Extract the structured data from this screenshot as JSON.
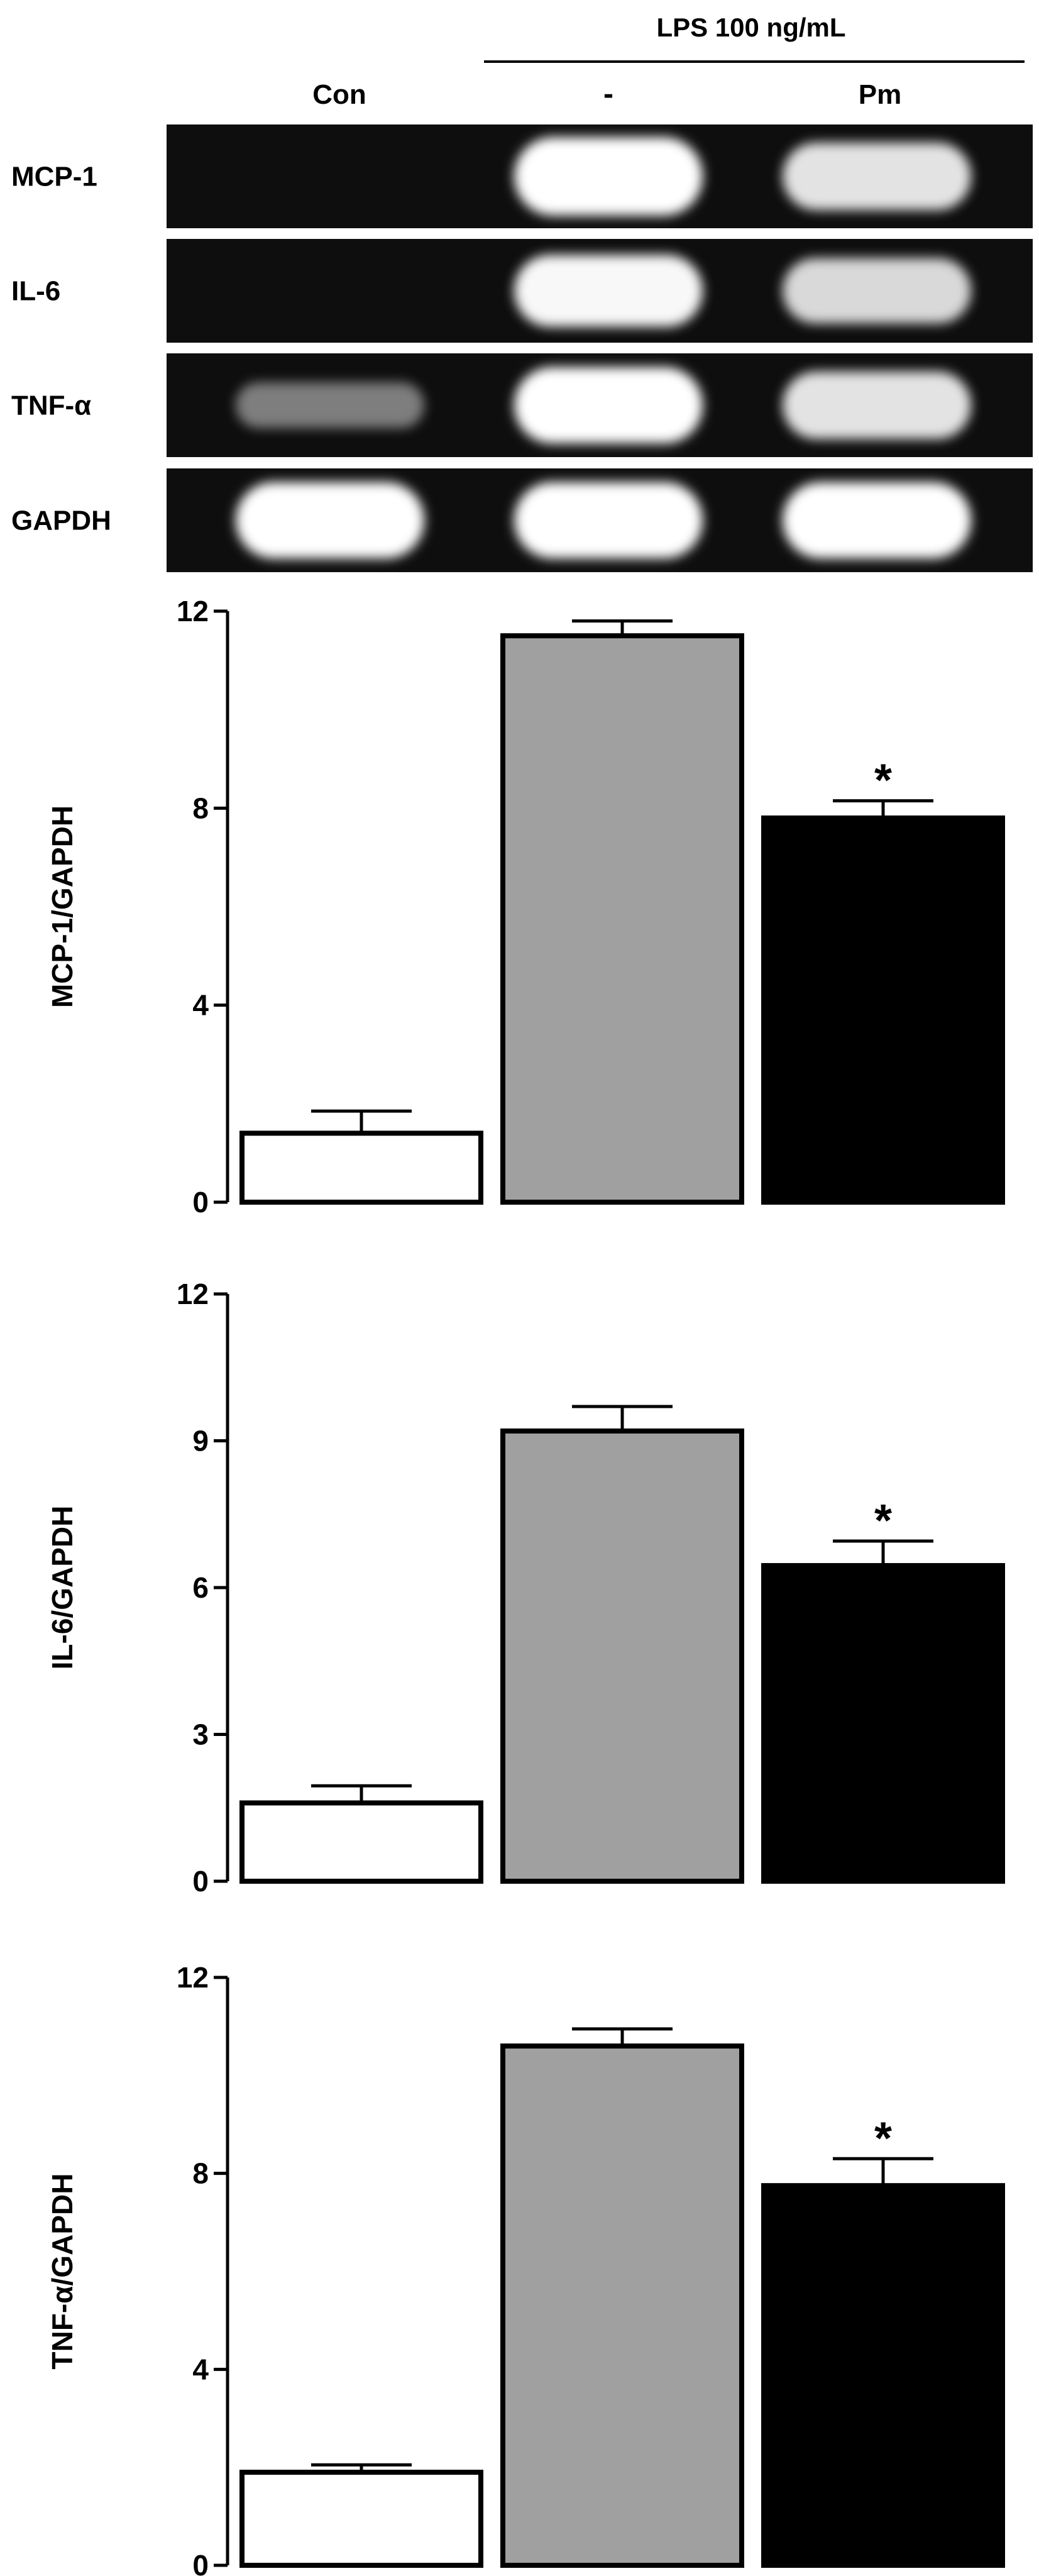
{
  "header": {
    "treatment_label": "LPS 100 ng/mL",
    "lanes": [
      "Con",
      "-",
      "Pm"
    ]
  },
  "gel": {
    "rows": [
      {
        "label": "MCP-1",
        "bands": [
          0.0,
          1.0,
          0.75
        ]
      },
      {
        "label": "IL-6",
        "bands": [
          0.0,
          0.85,
          0.7
        ]
      },
      {
        "label": "TNF-α",
        "bands": [
          0.25,
          0.95,
          0.75
        ]
      },
      {
        "label": "GAPDH",
        "bands": [
          0.95,
          0.95,
          0.95
        ]
      }
    ],
    "colors": {
      "background": "#0e0e0e",
      "band": "#ffffff"
    }
  },
  "colors": {
    "con_bar": "#ffffff",
    "lps_bar": "#a0a0a0",
    "pm_bar": "#000000",
    "outline": "#000000"
  },
  "chart_data": [
    {
      "type": "bar",
      "categories": [
        "Con",
        "-",
        "Pm"
      ],
      "values": [
        1.4,
        11.5,
        7.8
      ],
      "errors": [
        0.45,
        0.3,
        0.35
      ],
      "significance": [
        "",
        "",
        "*"
      ],
      "ylabel": "MCP-1/GAPDH",
      "ylim": [
        0,
        12
      ],
      "yticks": [
        0,
        4,
        8,
        12
      ]
    },
    {
      "type": "bar",
      "categories": [
        "Con",
        "-",
        "Pm"
      ],
      "values": [
        1.6,
        9.2,
        6.45
      ],
      "errors": [
        0.35,
        0.5,
        0.5
      ],
      "significance": [
        "",
        "",
        "*"
      ],
      "ylabel": "IL-6/GAPDH",
      "ylim": [
        0,
        12
      ],
      "yticks": [
        0,
        3,
        6,
        9,
        12
      ]
    },
    {
      "type": "bar",
      "categories": [
        "Con",
        "-",
        "Pm"
      ],
      "values": [
        1.9,
        10.6,
        7.75
      ],
      "errors": [
        0.15,
        0.35,
        0.55
      ],
      "significance": [
        "",
        "",
        "*"
      ],
      "ylabel": "TNF-α/GAPDH",
      "ylim": [
        0,
        12
      ],
      "yticks": [
        0,
        4,
        8,
        12
      ]
    }
  ]
}
